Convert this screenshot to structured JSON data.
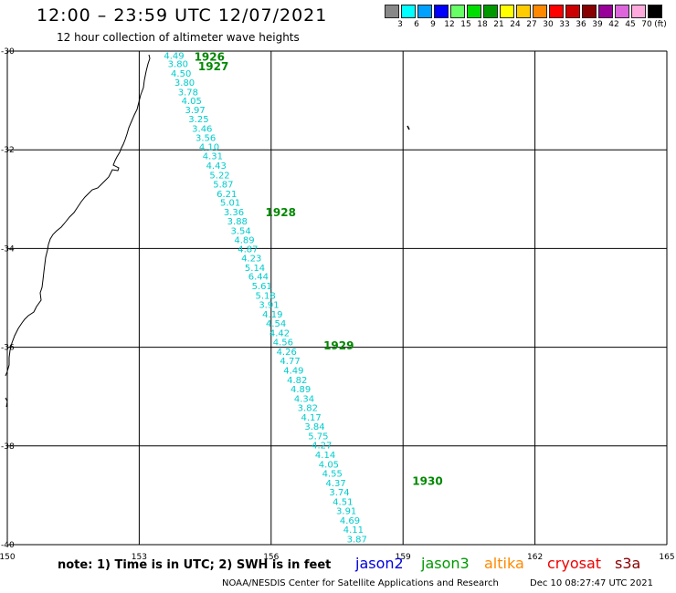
{
  "header": {
    "title": "12:00 – 23:59 UTC 12/07/2021",
    "subtitle": "12 hour collection of altimeter wave heights"
  },
  "legend": {
    "unit": "(ft)",
    "bins": [
      {
        "label": "3",
        "color": "#888888"
      },
      {
        "label": "6",
        "color": "#00ffff"
      },
      {
        "label": "9",
        "color": "#00a0ff"
      },
      {
        "label": "12",
        "color": "#0000ff"
      },
      {
        "label": "15",
        "color": "#66ff66"
      },
      {
        "label": "18",
        "color": "#00dd00"
      },
      {
        "label": "21",
        "color": "#009900"
      },
      {
        "label": "24",
        "color": "#ffff00"
      },
      {
        "label": "27",
        "color": "#ffcc00"
      },
      {
        "label": "30",
        "color": "#ff8800"
      },
      {
        "label": "33",
        "color": "#ff0000"
      },
      {
        "label": "36",
        "color": "#cc0000"
      },
      {
        "label": "39",
        "color": "#880000"
      },
      {
        "label": "42",
        "color": "#990099"
      },
      {
        "label": "45",
        "color": "#dd66dd"
      },
      {
        "label": "70",
        "color": "#ffaadd"
      },
      {
        "label": "",
        "color": "#000000"
      }
    ]
  },
  "map": {
    "lon_range": [
      150,
      165
    ],
    "lat_range": [
      -40,
      -30
    ],
    "lat_ticks": [
      "-30",
      "-32",
      "-34",
      "-36",
      "-38",
      "-40"
    ],
    "lon_ticks": [
      "150",
      "153",
      "156",
      "159",
      "162",
      "165"
    ],
    "grid": true,
    "track_color": "#00cccc",
    "time_label_color": "#008800"
  },
  "track": {
    "points": [
      {
        "lon": 153.56,
        "lat": -30.08,
        "swh": "4.49"
      },
      {
        "lon": 153.65,
        "lat": -30.25,
        "swh": "3.80"
      },
      {
        "lon": 153.72,
        "lat": -30.44,
        "swh": "4.50"
      },
      {
        "lon": 153.8,
        "lat": -30.63,
        "swh": "3.80"
      },
      {
        "lon": 153.88,
        "lat": -30.82,
        "swh": "3.78"
      },
      {
        "lon": 153.96,
        "lat": -31.0,
        "swh": "4.05"
      },
      {
        "lon": 154.04,
        "lat": -31.18,
        "swh": "3.97"
      },
      {
        "lon": 154.12,
        "lat": -31.37,
        "swh": "3.25"
      },
      {
        "lon": 154.2,
        "lat": -31.56,
        "swh": "3.46"
      },
      {
        "lon": 154.28,
        "lat": -31.75,
        "swh": "3.56"
      },
      {
        "lon": 154.36,
        "lat": -31.93,
        "swh": "4.10"
      },
      {
        "lon": 154.44,
        "lat": -32.12,
        "swh": "4.31"
      },
      {
        "lon": 154.52,
        "lat": -32.31,
        "swh": "4.43"
      },
      {
        "lon": 154.6,
        "lat": -32.5,
        "swh": "5.22"
      },
      {
        "lon": 154.68,
        "lat": -32.69,
        "swh": "5.87"
      },
      {
        "lon": 154.76,
        "lat": -32.88,
        "swh": "6.21"
      },
      {
        "lon": 154.84,
        "lat": -33.06,
        "swh": "5.01"
      },
      {
        "lon": 154.92,
        "lat": -33.25,
        "swh": "3.36"
      },
      {
        "lon": 155.0,
        "lat": -33.44,
        "swh": "3.88"
      },
      {
        "lon": 155.08,
        "lat": -33.63,
        "swh": "3.54"
      },
      {
        "lon": 155.16,
        "lat": -33.82,
        "swh": "4.89"
      },
      {
        "lon": 155.24,
        "lat": -34.0,
        "swh": "4.87"
      },
      {
        "lon": 155.32,
        "lat": -34.19,
        "swh": "4.23"
      },
      {
        "lon": 155.4,
        "lat": -34.38,
        "swh": "5.14"
      },
      {
        "lon": 155.48,
        "lat": -34.56,
        "swh": "6.44"
      },
      {
        "lon": 155.56,
        "lat": -34.75,
        "swh": "5.61"
      },
      {
        "lon": 155.64,
        "lat": -34.94,
        "swh": "5.18"
      },
      {
        "lon": 155.72,
        "lat": -35.13,
        "swh": "3.91"
      },
      {
        "lon": 155.8,
        "lat": -35.32,
        "swh": "4.19"
      },
      {
        "lon": 155.88,
        "lat": -35.51,
        "swh": "4.54"
      },
      {
        "lon": 155.96,
        "lat": -35.7,
        "swh": "4.42"
      },
      {
        "lon": 156.04,
        "lat": -35.89,
        "swh": "4.56"
      },
      {
        "lon": 156.12,
        "lat": -36.08,
        "swh": "4.26"
      },
      {
        "lon": 156.2,
        "lat": -36.27,
        "swh": "4.77"
      },
      {
        "lon": 156.28,
        "lat": -36.46,
        "swh": "4.49"
      },
      {
        "lon": 156.36,
        "lat": -36.65,
        "swh": "4.82"
      },
      {
        "lon": 156.44,
        "lat": -36.84,
        "swh": "4.89"
      },
      {
        "lon": 156.52,
        "lat": -37.03,
        "swh": "4.34"
      },
      {
        "lon": 156.6,
        "lat": -37.22,
        "swh": "3.82"
      },
      {
        "lon": 156.68,
        "lat": -37.41,
        "swh": "4.17"
      },
      {
        "lon": 156.76,
        "lat": -37.6,
        "swh": "3.84"
      },
      {
        "lon": 156.84,
        "lat": -37.79,
        "swh": "5.75"
      },
      {
        "lon": 156.92,
        "lat": -37.98,
        "swh": "4.27"
      },
      {
        "lon": 157.0,
        "lat": -38.17,
        "swh": "4.14"
      },
      {
        "lon": 157.08,
        "lat": -38.36,
        "swh": "4.05"
      },
      {
        "lon": 157.16,
        "lat": -38.55,
        "swh": "4.55"
      },
      {
        "lon": 157.24,
        "lat": -38.74,
        "swh": "4.37"
      },
      {
        "lon": 157.32,
        "lat": -38.93,
        "swh": "3.74"
      },
      {
        "lon": 157.4,
        "lat": -39.12,
        "swh": "4.51"
      },
      {
        "lon": 157.48,
        "lat": -39.31,
        "swh": "3.91"
      },
      {
        "lon": 157.56,
        "lat": -39.5,
        "swh": "4.69"
      },
      {
        "lon": 157.64,
        "lat": -39.69,
        "swh": "4.11"
      },
      {
        "lon": 157.72,
        "lat": -39.88,
        "swh": "3.87"
      }
    ],
    "time_labels": [
      {
        "text": "1926",
        "lon": 154.25,
        "lat": -30.1
      },
      {
        "text": "1927",
        "lon": 154.34,
        "lat": -30.3
      },
      {
        "text": "1928",
        "lon": 155.87,
        "lat": -33.25
      },
      {
        "text": "1929",
        "lon": 157.19,
        "lat": -35.95
      },
      {
        "text": "1930",
        "lon": 159.21,
        "lat": -38.7
      }
    ]
  },
  "footer": {
    "note": "note:  1) Time is in UTC;  2) SWH is in feet",
    "satellites": [
      {
        "name": "jason2",
        "color": "#0000dd"
      },
      {
        "name": "jason3",
        "color": "#009900"
      },
      {
        "name": "altika",
        "color": "#ff8800"
      },
      {
        "name": "cryosat",
        "color": "#ee0000"
      },
      {
        "name": "s3a",
        "color": "#880000"
      }
    ],
    "credit": "NOAA/NESDIS Center for Satellite Applications and Research",
    "timestamp": "Dec 10 08:27:47 UTC 2021"
  }
}
